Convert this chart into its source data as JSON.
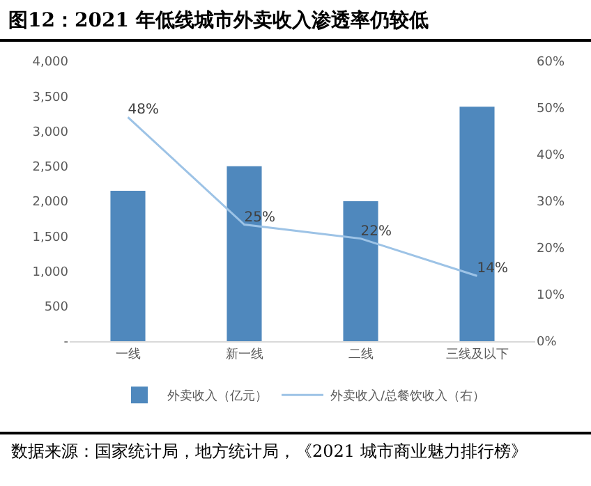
{
  "chart_data": {
    "type": "bar",
    "title": "图12：2021 年低线城市外卖收入渗透率仍较低",
    "categories": [
      "一线",
      "新一线",
      "二线",
      "三线及以下"
    ],
    "series": [
      {
        "name": "外卖收入（亿元）",
        "color": "#4f88bd",
        "values": [
          2150,
          2500,
          2000,
          3350
        ]
      },
      {
        "name": "外卖收入/总餐饮收入（右）",
        "type": "line",
        "axis": "y2",
        "color": "#9dc3e6",
        "values": [
          48,
          25,
          22,
          14
        ],
        "value_labels": [
          "48%",
          "25%",
          "22%",
          "14%"
        ],
        "marker": "none"
      }
    ],
    "ylim": [
      0,
      4000
    ],
    "yticks": [
      {
        "value": 0,
        "label": "-"
      },
      {
        "value": 500,
        "label": "500"
      },
      {
        "value": 1000,
        "label": "1,000"
      },
      {
        "value": 1500,
        "label": "1,500"
      },
      {
        "value": 2000,
        "label": "2,000"
      },
      {
        "value": 2500,
        "label": "2,500"
      },
      {
        "value": 3000,
        "label": "3,000"
      },
      {
        "value": 3500,
        "label": "3,500"
      },
      {
        "value": 4000,
        "label": "4,000"
      }
    ],
    "y2lim": [
      0,
      60
    ],
    "y2ticks": [
      {
        "value": 0,
        "label": "0%"
      },
      {
        "value": 10,
        "label": "10%"
      },
      {
        "value": 20,
        "label": "20%"
      },
      {
        "value": 30,
        "label": "30%"
      },
      {
        "value": 40,
        "label": "40%"
      },
      {
        "value": 50,
        "label": "50%"
      },
      {
        "value": 60,
        "label": "60%"
      }
    ],
    "grid": false,
    "legend": "bottom",
    "annotations": [
      "数据来源：国家统计局，地方统计局，《2021 城市商业魅力排行榜》"
    ]
  }
}
